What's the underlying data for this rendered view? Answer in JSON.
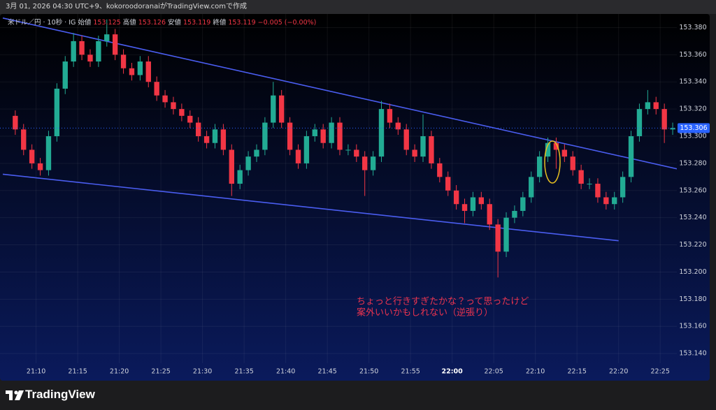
{
  "caption": "3月 01, 2026 04:30 UTC+9、kokoroodoranaiがTradingView.comで作成",
  "brand": "TradingView",
  "chart_data": {
    "type": "candlestick",
    "legend": {
      "symbol": "米ドル／円 · 10秒 · IG",
      "fields": [
        {
          "label": "始値",
          "value": 153.125
        },
        {
          "label": "高値",
          "value": 153.126
        },
        {
          "label": "安値",
          "value": 153.119
        },
        {
          "label": "終値",
          "value": 153.119
        }
      ],
      "change": "−0.005 (−0.00%)"
    },
    "x": [
      "21:07",
      "21:08",
      "21:09",
      "21:10",
      "21:11",
      "21:12",
      "21:13",
      "21:14",
      "21:15",
      "21:16",
      "21:17",
      "21:18",
      "21:19",
      "21:20",
      "21:21",
      "21:22",
      "21:23",
      "21:24",
      "21:25",
      "21:26",
      "21:27",
      "21:28",
      "21:29",
      "21:30",
      "21:31",
      "21:32",
      "21:33",
      "21:34",
      "21:35",
      "21:36",
      "21:37",
      "21:38",
      "21:39",
      "21:40",
      "21:41",
      "21:42",
      "21:43",
      "21:44",
      "21:45",
      "21:46",
      "21:47",
      "21:48",
      "21:49",
      "21:50",
      "21:51",
      "21:52",
      "21:53",
      "21:54",
      "21:55",
      "21:56",
      "21:57",
      "21:58",
      "21:59",
      "22:00",
      "22:01",
      "22:02",
      "22:03",
      "22:04",
      "22:05",
      "22:06",
      "22:07",
      "22:08",
      "22:09",
      "22:10",
      "22:11",
      "22:12",
      "22:13",
      "22:14",
      "22:15",
      "22:16",
      "22:17",
      "22:18",
      "22:19",
      "22:20",
      "22:21",
      "22:22",
      "22:23",
      "22:24",
      "22:25",
      "22:26"
    ],
    "open": [
      153.315,
      153.305,
      153.29,
      153.28,
      153.275,
      153.3,
      153.335,
      153.355,
      153.37,
      153.36,
      153.355,
      153.37,
      153.375,
      153.36,
      153.35,
      153.345,
      153.355,
      153.34,
      153.33,
      153.325,
      153.32,
      153.315,
      153.31,
      153.3,
      153.295,
      153.305,
      153.29,
      153.265,
      153.275,
      153.285,
      153.29,
      153.31,
      153.33,
      153.31,
      153.29,
      153.28,
      153.3,
      153.305,
      153.295,
      153.31,
      153.29,
      153.29,
      153.285,
      153.275,
      153.285,
      153.32,
      153.31,
      153.305,
      153.29,
      153.285,
      153.3,
      153.28,
      153.27,
      153.26,
      153.25,
      153.245,
      153.255,
      153.25,
      153.235,
      153.215,
      153.24,
      153.245,
      153.255,
      153.27,
      153.285,
      153.295,
      153.29,
      153.285,
      153.275,
      153.265,
      153.265,
      153.255,
      153.25,
      153.255,
      153.27,
      153.3,
      153.32,
      153.325,
      153.32,
      153.305
    ],
    "high": [
      153.319,
      153.309,
      153.294,
      153.284,
      153.304,
      153.339,
      153.359,
      153.376,
      153.374,
      153.364,
      153.374,
      153.386,
      153.379,
      153.364,
      153.354,
      153.359,
      153.359,
      153.344,
      153.334,
      153.329,
      153.324,
      153.319,
      153.314,
      153.304,
      153.309,
      153.309,
      153.294,
      153.279,
      153.289,
      153.294,
      153.314,
      153.34,
      153.334,
      153.314,
      153.294,
      153.304,
      153.309,
      153.309,
      153.314,
      153.314,
      153.294,
      153.294,
      153.289,
      153.289,
      153.326,
      153.324,
      153.314,
      153.309,
      153.294,
      153.316,
      153.304,
      153.284,
      153.274,
      153.264,
      153.254,
      153.259,
      153.259,
      153.254,
      153.239,
      153.244,
      153.249,
      153.259,
      153.274,
      153.289,
      153.299,
      153.299,
      153.294,
      153.289,
      153.279,
      153.269,
      153.269,
      153.259,
      153.259,
      153.274,
      153.304,
      153.324,
      153.334,
      153.329,
      153.324,
      153.31
    ],
    "low": [
      153.301,
      153.286,
      153.276,
      153.271,
      153.271,
      153.296,
      153.331,
      153.351,
      153.356,
      153.351,
      153.351,
      153.366,
      153.356,
      153.346,
      153.341,
      153.341,
      153.336,
      153.326,
      153.321,
      153.316,
      153.311,
      153.306,
      153.296,
      153.291,
      153.291,
      153.286,
      153.256,
      153.261,
      153.271,
      153.281,
      153.286,
      153.306,
      153.306,
      153.286,
      153.276,
      153.276,
      153.296,
      153.291,
      153.291,
      153.286,
      153.286,
      153.281,
      153.256,
      153.271,
      153.281,
      153.306,
      153.301,
      153.286,
      153.281,
      153.281,
      153.276,
      153.266,
      153.256,
      153.246,
      153.236,
      153.241,
      153.246,
      153.231,
      153.196,
      153.211,
      153.236,
      153.241,
      153.251,
      153.266,
      153.281,
      153.276,
      153.281,
      153.271,
      153.261,
      153.261,
      153.251,
      153.246,
      153.246,
      153.251,
      153.266,
      153.296,
      153.316,
      153.316,
      153.295,
      153.301
    ],
    "close": [
      153.305,
      153.29,
      153.28,
      153.275,
      153.3,
      153.335,
      153.355,
      153.37,
      153.36,
      153.355,
      153.37,
      153.375,
      153.36,
      153.35,
      153.345,
      153.355,
      153.34,
      153.33,
      153.325,
      153.32,
      153.315,
      153.31,
      153.3,
      153.295,
      153.305,
      153.29,
      153.265,
      153.275,
      153.285,
      153.29,
      153.31,
      153.33,
      153.31,
      153.29,
      153.28,
      153.3,
      153.305,
      153.295,
      153.31,
      153.29,
      153.29,
      153.285,
      153.275,
      153.285,
      153.32,
      153.31,
      153.305,
      153.29,
      153.285,
      153.3,
      153.28,
      153.27,
      153.26,
      153.25,
      153.245,
      153.255,
      153.25,
      153.235,
      153.215,
      153.24,
      153.245,
      153.255,
      153.27,
      153.285,
      153.295,
      153.29,
      153.285,
      153.275,
      153.265,
      153.265,
      153.255,
      153.25,
      153.255,
      153.27,
      153.3,
      153.32,
      153.325,
      153.32,
      153.305,
      153.306
    ],
    "up_color": "#22ab94",
    "down_color": "#f23645",
    "xlim": [
      "21:06",
      "22:27"
    ],
    "xticks": [
      "21:10",
      "21:15",
      "21:20",
      "21:25",
      "21:30",
      "21:35",
      "21:40",
      "21:45",
      "21:50",
      "21:55",
      "22:00",
      "22:05",
      "22:10",
      "22:15",
      "22:20",
      "22:25"
    ],
    "ylim": [
      153.12,
      153.39
    ],
    "yticks": [
      {
        "value": 153.14,
        "label": "153.140"
      },
      {
        "value": 153.16,
        "label": "153.160"
      },
      {
        "value": 153.18,
        "label": "153.180"
      },
      {
        "value": 153.2,
        "label": "153.200"
      },
      {
        "value": 153.22,
        "label": "153.220"
      },
      {
        "value": 153.24,
        "label": "153.240"
      },
      {
        "value": 153.26,
        "label": "153.260"
      },
      {
        "value": 153.28,
        "label": "153.280"
      },
      {
        "value": 153.3,
        "label": "153.300"
      },
      {
        "value": 153.32,
        "label": "153.320"
      },
      {
        "value": 153.34,
        "label": "153.340"
      },
      {
        "value": 153.36,
        "label": "153.360"
      },
      {
        "value": 153.38,
        "label": "153.380"
      }
    ],
    "grid": true,
    "last_price": 153.306,
    "last_price_color": "#2962ff",
    "trendlines": [
      {
        "x": [
          "21:06",
          "22:27"
        ],
        "y": [
          153.387,
          153.276
        ],
        "color": "#4a5df0"
      },
      {
        "x": [
          "21:06",
          "22:20"
        ],
        "y": [
          153.272,
          153.223
        ],
        "color": "#4a5df0"
      }
    ],
    "annotation": [
      "ちょっと行きすぎたかな？って思ったけど",
      "案外いいかもしれない（逆張り）"
    ],
    "annotation_color": "#e8334f"
  }
}
